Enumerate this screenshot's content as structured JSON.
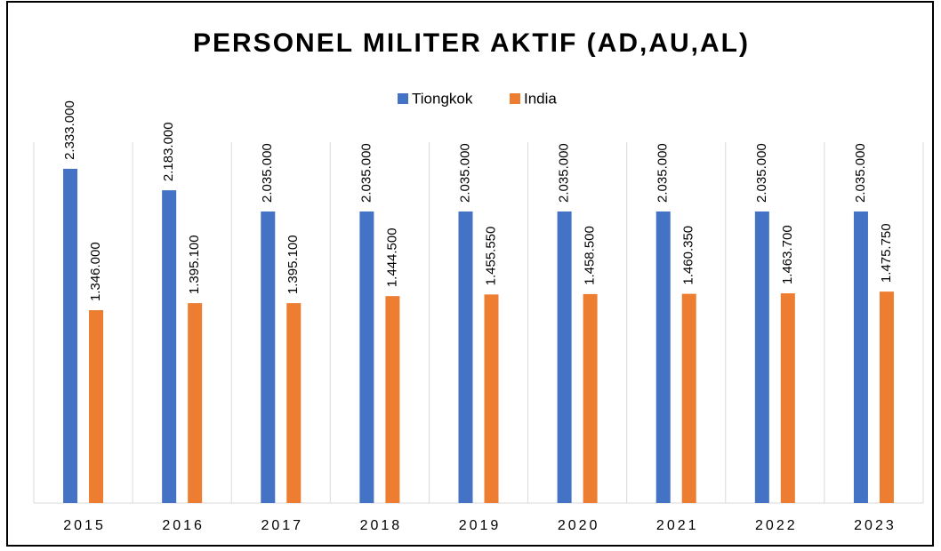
{
  "chart_data": {
    "type": "bar",
    "title": "PERSONEL MILITER AKTIF (AD,AU,AL)",
    "categories": [
      "2015",
      "2016",
      "2017",
      "2018",
      "2019",
      "2020",
      "2021",
      "2022",
      "2023"
    ],
    "series": [
      {
        "name": "Tiongkok",
        "color": "#4472c4",
        "values": [
          2333000,
          2183000,
          2035000,
          2035000,
          2035000,
          2035000,
          2035000,
          2035000,
          2035000
        ],
        "value_labels": [
          "2.333.000",
          "2.183.000",
          "2.035.000",
          "2.035.000",
          "2.035.000",
          "2.035.000",
          "2.035.000",
          "2.035.000",
          "2.035.000"
        ]
      },
      {
        "name": "India",
        "color": "#ed7d31",
        "values": [
          1346000,
          1395100,
          1395100,
          1444500,
          1455550,
          1458500,
          1460350,
          1463700,
          1475750
        ],
        "value_labels": [
          "1.346.000",
          "1.395.100",
          "1.395.100",
          "1.444.500",
          "1.455.550",
          "1.458.500",
          "1.460.350",
          "1.463.700",
          "1.475.750"
        ]
      }
    ],
    "ylim": [
      0,
      2500000
    ],
    "legend": "top"
  }
}
